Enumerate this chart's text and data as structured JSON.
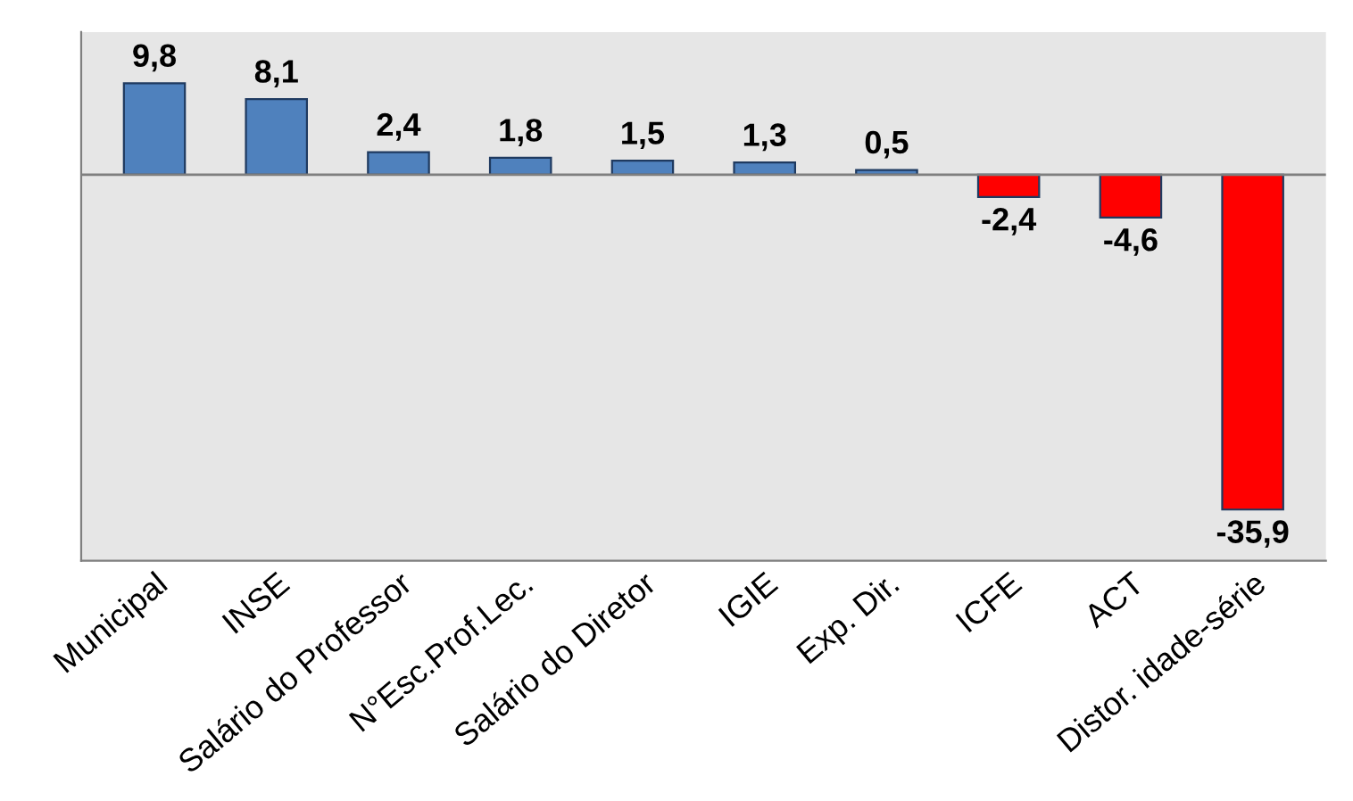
{
  "chart_data": {
    "type": "bar",
    "categories": [
      "Municipal",
      "INSE",
      "Salário do Professor",
      "N°Esc.Prof.Lec.",
      "Salário do Diretor",
      "IGIE",
      "Exp. Dir.",
      "ICFE",
      "ACT",
      "Distor. idade-série"
    ],
    "values": [
      9.8,
      8.1,
      2.4,
      1.8,
      1.5,
      1.3,
      0.5,
      -2.4,
      -4.6,
      -35.9
    ],
    "value_labels": [
      "9,8",
      "8,1",
      "2,4",
      "1,8",
      "1,5",
      "1,3",
      "0,5",
      "-2,4",
      "-4,6",
      "-35,9"
    ],
    "colors": [
      "#4f81bd",
      "#4f81bd",
      "#4f81bd",
      "#4f81bd",
      "#4f81bd",
      "#4f81bd",
      "#4f81bd",
      "#ff0000",
      "#ff0000",
      "#ff0000"
    ],
    "grid": false,
    "legend": false
  }
}
